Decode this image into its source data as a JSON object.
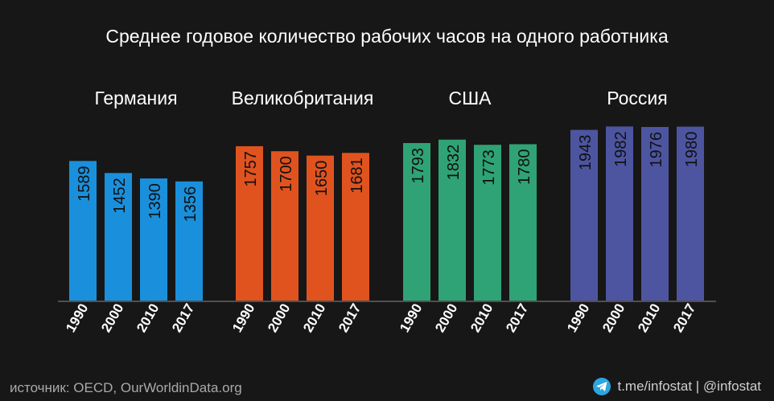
{
  "chart_data": {
    "type": "bar",
    "title": "Среднее годовое количество рабочих часов на одного работника",
    "ylim": [
      0,
      2000
    ],
    "groups": [
      {
        "name": "Германия",
        "color": "#1a90dc",
        "categories": [
          "1990",
          "2000",
          "2010",
          "2017"
        ],
        "values": [
          1589,
          1452,
          1390,
          1356
        ]
      },
      {
        "name": "Великобритания",
        "color": "#e0531f",
        "categories": [
          "1990",
          "2000",
          "2010",
          "2017"
        ],
        "values": [
          1757,
          1700,
          1650,
          1681
        ]
      },
      {
        "name": "США",
        "color": "#2fa376",
        "categories": [
          "1990",
          "2000",
          "2010",
          "2017"
        ],
        "values": [
          1793,
          1832,
          1773,
          1780
        ]
      },
      {
        "name": "Россия",
        "color": "#4d55a1",
        "categories": [
          "1990",
          "2000",
          "2010",
          "2017"
        ],
        "values": [
          1943,
          1982,
          1976,
          1980
        ]
      }
    ]
  },
  "footer": {
    "source": "источник: OECD, OurWorldinData.org",
    "credit": "t.me/infostat | @infostat",
    "credit_icon": "telegram-icon"
  }
}
